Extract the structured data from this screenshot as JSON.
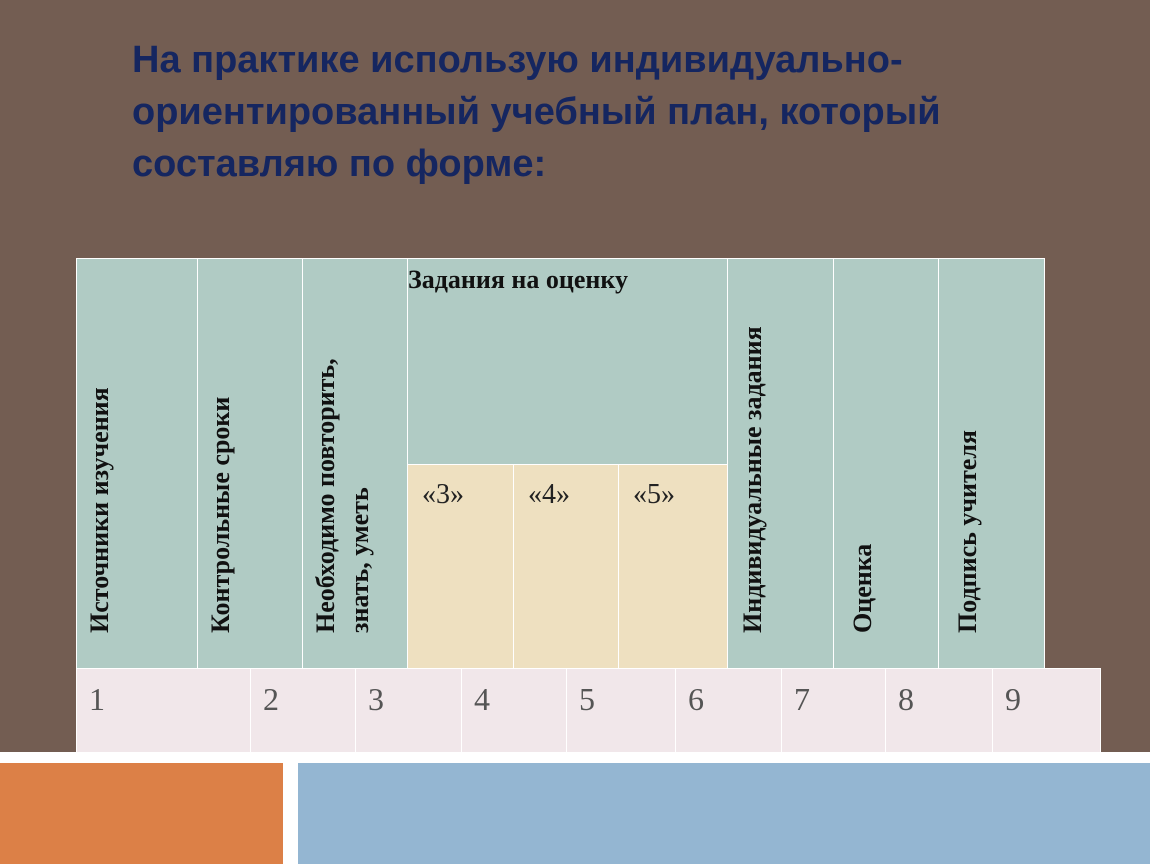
{
  "slide": {
    "title_lines": [
      "На практике использую индивидуально-",
      "ориентированный учебный план, который",
      "составляю по форме:"
    ]
  },
  "table": {
    "headers": {
      "sources": "Источники изучения",
      "deadlines": "Контрольные сроки",
      "repeat_line1": "Необходимо повторить,",
      "repeat_line2": "знать, уметь",
      "tasks": "Задания на оценку",
      "individual": "Индивидуальные задания",
      "grade": "Оценка",
      "signature": "Подпись учителя"
    },
    "grades": [
      "«3»",
      "«4»",
      "«5»"
    ],
    "numbers": [
      "1",
      "2",
      "3",
      "4",
      "5",
      "6",
      "7",
      "8",
      "9"
    ]
  },
  "colors": {
    "background": "#735d52",
    "title": "#152660",
    "header_fill": "#b0cbc4",
    "grade_fill": "#eee0c0",
    "number_fill": "#f1e7ea",
    "accent_orange": "#dc8047",
    "accent_blue": "#94b6d2"
  }
}
